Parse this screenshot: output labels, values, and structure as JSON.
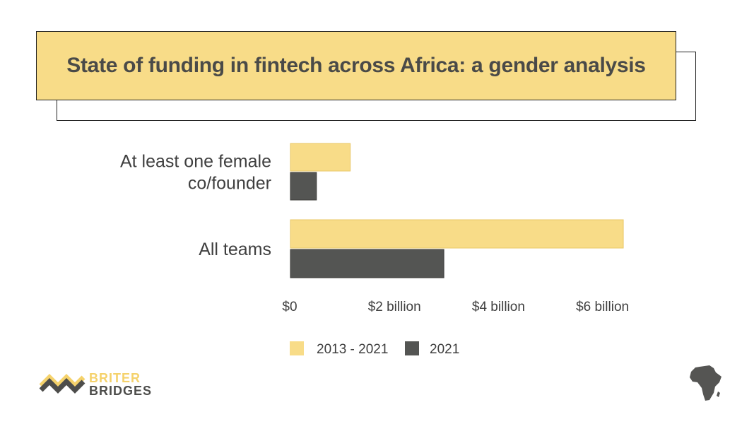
{
  "colors": {
    "series_2013_2021": "#f8dc88",
    "series_2021": "#545553",
    "logo_dark": "#4d4d4b",
    "logo_accent": "#f5d26b"
  },
  "chart_data": {
    "type": "bar",
    "orientation": "horizontal",
    "title": "State of funding in fintech across Africa: a gender analysis",
    "categories": [
      [
        "At least one female",
        "co/founder"
      ],
      [
        "All teams"
      ]
    ],
    "series": [
      {
        "name": "2013 - 2021",
        "values": [
          1.15,
          6.4
        ]
      },
      {
        "name": "2021",
        "values": [
          0.5,
          2.95
        ]
      }
    ],
    "xlim": [
      0,
      7
    ],
    "xticks": [
      {
        "value": 0,
        "label": "$0"
      },
      {
        "value": 2,
        "label": "$2 billion"
      },
      {
        "value": 4,
        "label": "$4 billion"
      },
      {
        "value": 6,
        "label": "$6 billion"
      }
    ],
    "grid": false,
    "legend_position": "bottom"
  },
  "logo": {
    "line1": "BRITER",
    "line2": "BRIDGES",
    "icon": "briter-bridges-logo-icon"
  },
  "corner_icon": "africa-map-icon"
}
